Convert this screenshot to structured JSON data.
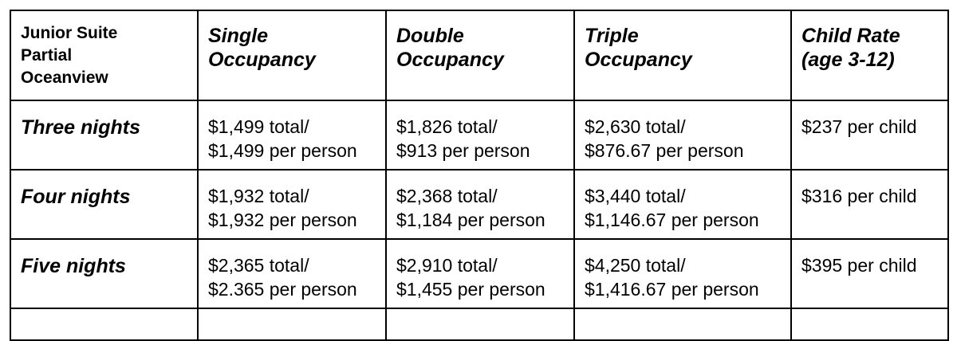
{
  "table": {
    "corner_lines": [
      "Junior Suite",
      "Partial",
      "Oceanview"
    ],
    "columns": [
      {
        "line1": "Single",
        "line2": "Occupancy"
      },
      {
        "line1": "Double",
        "line2": "Occupancy"
      },
      {
        "line1": "Triple",
        "line2": "Occupancy"
      },
      {
        "line1": "Child Rate",
        "line2": "(age 3-12)"
      }
    ],
    "rows": [
      {
        "label": "Three nights",
        "single": {
          "total": "$1,499 total/",
          "per": "$1,499 per person"
        },
        "double": {
          "total": "$1,826 total/",
          "per": "$913 per person"
        },
        "triple": {
          "total": "$2,630 total/",
          "per": "$876.67 per person"
        },
        "child": "$237 per child"
      },
      {
        "label": "Four nights",
        "single": {
          "total": "$1,932 total/",
          "per": "$1,932 per person"
        },
        "double": {
          "total": "$2,368 total/",
          "per": "$1,184 per person"
        },
        "triple": {
          "total": "$3,440 total/",
          "per": "$1,146.67 per person"
        },
        "child": "$316 per child"
      },
      {
        "label": "Five nights",
        "single": {
          "total": "$2,365 total/",
          "per": "$2.365 per person"
        },
        "double": {
          "total": "$2,910 total/",
          "per": "$1,455 per person"
        },
        "triple": {
          "total": "$4,250 total/",
          "per": "$1,416.67 per person"
        },
        "child": "$395 per child"
      }
    ]
  }
}
